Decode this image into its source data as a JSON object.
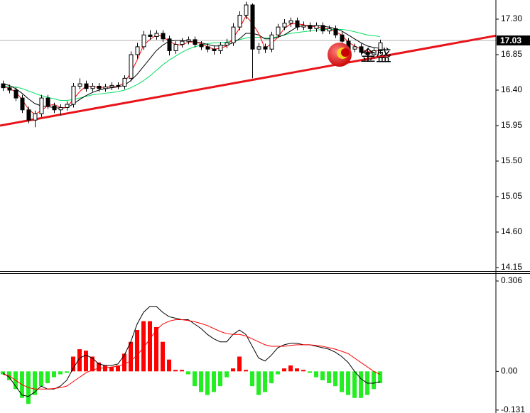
{
  "watermark": "金盛",
  "chart_data": [
    {
      "type": "candlestick",
      "xlim": [
        -0.44,
        77.1
      ],
      "ylim": [
        14.105,
        17.543
      ],
      "yticks": [
        {
          "value": 17.3,
          "label": "17.30"
        },
        16.85,
        {
          "value": 16.4,
          "label": "16.40"
        },
        15.95,
        {
          "value": 15.5,
          "label": "15.50"
        },
        15.05,
        {
          "value": 14.6,
          "label": "14.60"
        },
        14.15
      ],
      "current_price": 17.03,
      "up_color": "#ffffff",
      "down_color": "#000000",
      "outline_color": "#000000",
      "open": [
        16.48,
        16.43,
        16.4,
        16.3,
        16.15,
        16.02,
        16.1,
        16.3,
        16.2,
        16.15,
        16.18,
        16.22,
        16.45,
        16.48,
        16.42,
        16.45,
        16.42,
        16.44,
        16.46,
        16.45,
        16.55,
        16.85,
        16.95,
        17.1,
        17.08,
        17.12,
        17.05,
        16.9,
        16.98,
        17.02,
        17.04,
        16.98,
        16.95,
        16.92,
        16.9,
        16.97,
        17.0,
        17.2,
        17.35,
        17.48,
        16.92,
        16.95,
        16.92,
        17.1,
        17.2,
        17.25,
        17.28,
        17.2,
        17.22,
        17.18,
        17.22,
        17.15,
        17.18,
        17.1,
        17.02,
        16.92,
        16.95,
        16.88,
        16.85,
        16.9
      ],
      "high": [
        16.52,
        16.47,
        16.44,
        16.34,
        16.19,
        16.14,
        16.34,
        16.34,
        16.24,
        16.22,
        16.26,
        16.49,
        16.55,
        16.52,
        16.49,
        16.49,
        16.48,
        16.5,
        16.5,
        16.59,
        16.89,
        17.0,
        17.15,
        17.16,
        17.16,
        17.16,
        17.09,
        17.02,
        17.06,
        17.08,
        17.08,
        17.02,
        16.99,
        16.96,
        17.01,
        17.05,
        17.25,
        17.4,
        17.52,
        17.5,
        17.0,
        16.99,
        17.14,
        17.24,
        17.3,
        17.32,
        17.32,
        17.27,
        17.26,
        17.26,
        17.26,
        17.22,
        17.22,
        17.14,
        17.06,
        16.99,
        16.99,
        16.92,
        16.94,
        17.04
      ],
      "low": [
        16.39,
        16.36,
        16.26,
        16.11,
        15.98,
        15.93,
        16.06,
        16.16,
        16.11,
        16.08,
        16.14,
        16.18,
        16.41,
        16.38,
        16.38,
        16.38,
        16.38,
        16.4,
        16.41,
        16.41,
        16.51,
        16.8,
        16.91,
        17.04,
        17.04,
        17.01,
        16.84,
        16.86,
        16.94,
        16.98,
        16.94,
        16.91,
        16.88,
        16.85,
        16.86,
        16.93,
        16.96,
        17.16,
        17.3,
        16.55,
        16.86,
        16.87,
        16.88,
        17.06,
        17.16,
        17.2,
        17.16,
        17.16,
        17.14,
        17.14,
        17.11,
        17.11,
        17.06,
        16.98,
        16.88,
        16.88,
        16.84,
        16.81,
        16.81,
        16.86
      ],
      "close": [
        16.43,
        16.4,
        16.3,
        16.15,
        16.02,
        16.1,
        16.3,
        16.2,
        16.15,
        16.18,
        16.22,
        16.45,
        16.48,
        16.42,
        16.45,
        16.42,
        16.44,
        16.46,
        16.45,
        16.55,
        16.85,
        16.95,
        17.1,
        17.08,
        17.12,
        17.05,
        16.9,
        16.98,
        17.02,
        17.04,
        16.98,
        16.95,
        16.92,
        16.9,
        16.97,
        17.0,
        17.2,
        17.35,
        17.48,
        16.92,
        16.95,
        16.92,
        17.1,
        17.2,
        17.25,
        17.28,
        17.2,
        17.22,
        17.18,
        17.22,
        17.15,
        17.18,
        17.1,
        17.02,
        16.92,
        16.95,
        16.88,
        16.85,
        16.9,
        17.0
      ],
      "ma_lines": [
        {
          "color": "#00e060",
          "values": [
            16.45,
            16.45,
            16.44,
            16.42,
            16.39,
            16.36,
            16.33,
            16.31,
            16.29,
            16.27,
            16.27,
            16.28,
            16.3,
            16.32,
            16.34,
            16.35,
            16.36,
            16.37,
            16.38,
            16.4,
            16.43,
            16.47,
            16.52,
            16.58,
            16.65,
            16.72,
            16.78,
            16.83,
            16.88,
            16.92,
            16.95,
            16.97,
            16.99,
            17.0,
            17.0,
            17.01,
            17.02,
            17.04,
            17.06,
            17.07,
            17.07,
            17.06,
            17.06,
            17.08,
            17.1,
            17.12,
            17.13,
            17.14,
            17.15,
            17.16,
            17.17,
            17.17,
            17.17,
            17.17,
            17.16,
            17.14,
            17.12,
            17.1,
            17.09,
            17.08
          ]
        },
        {
          "color": "#000000",
          "values": [
            16.48,
            16.46,
            16.42,
            16.36,
            16.29,
            16.23,
            16.2,
            16.19,
            16.18,
            16.17,
            16.18,
            16.22,
            16.28,
            16.33,
            16.37,
            16.4,
            16.42,
            16.43,
            16.44,
            16.46,
            16.52,
            16.6,
            16.7,
            16.8,
            16.9,
            16.97,
            17.02,
            17.03,
            17.03,
            17.02,
            17.01,
            17.0,
            16.98,
            16.96,
            16.96,
            16.97,
            17.0,
            17.05,
            17.12,
            17.12,
            17.1,
            17.05,
            17.05,
            17.07,
            17.1,
            17.15,
            17.2,
            17.22,
            17.22,
            17.22,
            17.21,
            17.2,
            17.18,
            17.15,
            17.1,
            17.05,
            17.0,
            16.96,
            16.94,
            16.93
          ]
        },
        {
          "color": "#ff0000",
          "values": [
            16.45,
            16.42,
            16.38,
            16.28,
            16.16,
            16.09,
            16.14,
            16.2,
            16.22,
            16.18,
            16.18,
            16.28,
            16.38,
            16.45,
            16.45,
            16.43,
            16.44,
            16.44,
            16.45,
            16.49,
            16.62,
            16.78,
            16.97,
            17.04,
            17.1,
            17.08,
            17.02,
            16.98,
            16.97,
            17.01,
            17.01,
            16.99,
            16.95,
            16.92,
            16.93,
            16.96,
            17.06,
            17.18,
            17.34,
            17.25,
            17.12,
            16.93,
            16.99,
            17.07,
            17.18,
            17.24,
            17.24,
            17.23,
            17.2,
            17.21,
            17.18,
            17.18,
            17.14,
            17.1,
            17.01,
            16.96,
            16.92,
            16.89,
            16.88,
            16.92
          ]
        }
      ],
      "trendline": {
        "color": "#e8141a",
        "x": [
          -0.44,
          77.1
        ],
        "y": [
          15.95,
          17.09
        ]
      }
    },
    {
      "type": "macd",
      "xlim": [
        -0.44,
        77.1
      ],
      "ylim": [
        -0.141,
        0.33
      ],
      "yticks": [
        0.306,
        {
          "value": 0,
          "label": "0.00"
        },
        -0.131
      ],
      "up_color": "#ff0000",
      "down_color": "#22ee22",
      "values": [
        -0.01,
        -0.03,
        -0.06,
        -0.09,
        -0.11,
        -0.08,
        -0.05,
        -0.04,
        -0.02,
        -0.01,
        -0.005,
        0.05,
        0.075,
        0.07,
        0.05,
        0.03,
        0.02,
        0.015,
        0.02,
        0.06,
        0.1,
        0.14,
        0.17,
        0.17,
        0.15,
        0.1,
        0.04,
        0.005,
        0.005,
        -0.01,
        -0.05,
        -0.07,
        -0.08,
        -0.07,
        -0.05,
        -0.02,
        0.01,
        0.05,
        0.005,
        -0.05,
        -0.08,
        -0.07,
        -0.04,
        -0.01,
        0.01,
        0.02,
        0.01,
        0.005,
        -0.005,
        -0.02,
        -0.03,
        -0.04,
        -0.05,
        -0.07,
        -0.08,
        -0.09,
        -0.09,
        -0.08,
        -0.06,
        -0.04
      ],
      "lines": [
        {
          "color": "#000000",
          "values": [
            -0.005,
            -0.02,
            -0.05,
            -0.08,
            -0.085,
            -0.07,
            -0.05,
            -0.06,
            -0.06,
            -0.05,
            -0.03,
            0.01,
            0.045,
            0.055,
            0.045,
            0.025,
            0.02,
            0.02,
            0.025,
            0.055,
            0.1,
            0.16,
            0.2,
            0.22,
            0.22,
            0.2,
            0.185,
            0.18,
            0.175,
            0.175,
            0.16,
            0.145,
            0.125,
            0.11,
            0.1,
            0.1,
            0.125,
            0.14,
            0.125,
            0.085,
            0.045,
            0.035,
            0.055,
            0.08,
            0.09,
            0.095,
            0.095,
            0.09,
            0.09,
            0.085,
            0.08,
            0.075,
            0.065,
            0.05,
            0.03,
            0,
            -0.025,
            -0.04,
            -0.04,
            -0.035
          ]
        },
        {
          "color": "#ff0000",
          "values": [
            -0.01,
            -0.015,
            -0.03,
            -0.045,
            -0.055,
            -0.06,
            -0.06,
            -0.06,
            -0.058,
            -0.055,
            -0.05,
            -0.035,
            -0.02,
            -0.005,
            0.005,
            0.01,
            0.012,
            0.015,
            0.017,
            0.025,
            0.035,
            0.055,
            0.08,
            0.11,
            0.14,
            0.16,
            0.17,
            0.175,
            0.175,
            0.172,
            0.168,
            0.162,
            0.155,
            0.145,
            0.135,
            0.128,
            0.125,
            0.125,
            0.12,
            0.11,
            0.1,
            0.09,
            0.085,
            0.085,
            0.085,
            0.088,
            0.09,
            0.09,
            0.09,
            0.088,
            0.085,
            0.08,
            0.075,
            0.068,
            0.06,
            0.045,
            0.03,
            0.015,
            0,
            -0.01
          ]
        }
      ]
    }
  ]
}
